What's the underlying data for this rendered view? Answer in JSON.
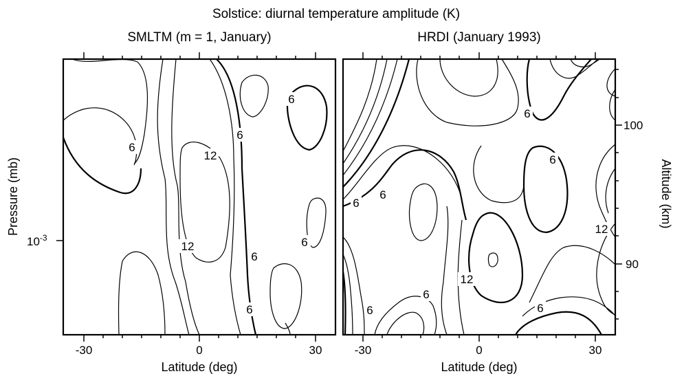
{
  "figure": {
    "suptitle": "Solstice: diurnal temperature amplitude (K)"
  },
  "chart_data": [
    {
      "type": "contour",
      "title": "SMLTM (m = 1, January)",
      "xlabel": "Latitude (deg)",
      "ylabel": "Pressure (mb)",
      "xlim": [
        -35,
        35
      ],
      "x_ticks": [
        -30,
        0,
        30
      ],
      "y_tick_label": "10-3",
      "contour_labels": [
        "6",
        "12",
        "6",
        "6",
        "12",
        "6",
        "6",
        "6"
      ]
    },
    {
      "type": "contour",
      "title": "HRDI (January 1993)",
      "xlabel": "Latitude (deg)",
      "ylabel": "Altitude (km)",
      "xlim": [
        -35,
        35
      ],
      "ylim": [
        84,
        106
      ],
      "x_ticks": [
        -30,
        0,
        30
      ],
      "y_ticks": [
        90,
        100
      ],
      "contour_labels": [
        "6",
        "6",
        "6",
        "6",
        "12",
        "12",
        "6",
        "6",
        "6"
      ]
    }
  ]
}
